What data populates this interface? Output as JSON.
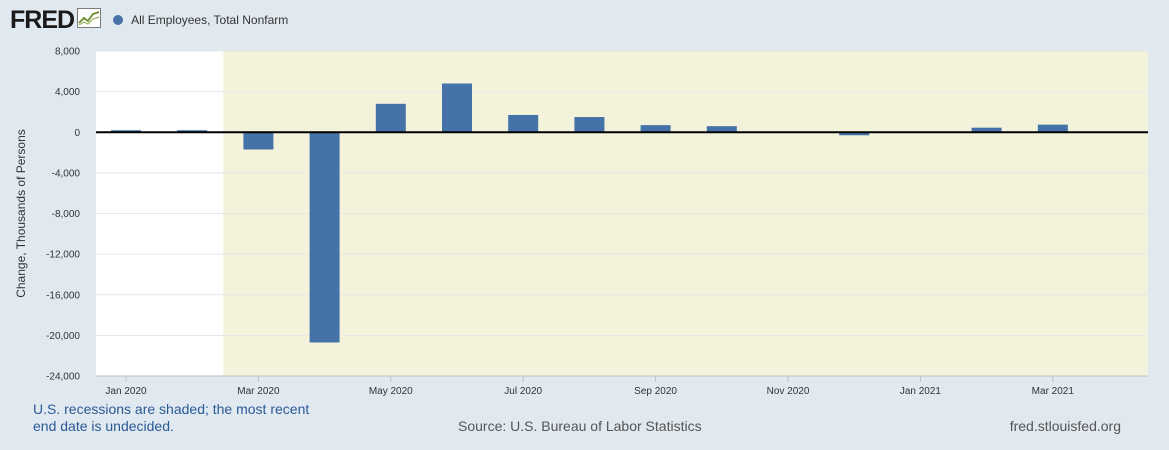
{
  "header": {
    "logo_text": "FRED",
    "logo_icon": "line-graph-icon"
  },
  "colors": {
    "background": "#e1e9f0",
    "bar": "#4572a7",
    "recession": "#f3f3dc",
    "plot_bg": "#ffffff"
  },
  "chart_data": {
    "type": "bar",
    "series": [
      {
        "name": "All Employees, Total Nonfarm",
        "x": [
          "2020-01",
          "2020-02",
          "2020-03",
          "2020-04",
          "2020-05",
          "2020-06",
          "2020-07",
          "2020-08",
          "2020-09",
          "2020-10",
          "2020-11",
          "2020-12",
          "2021-01",
          "2021-02",
          "2021-03",
          "2021-04"
        ],
        "values": [
          200,
          200,
          -1700,
          -20700,
          2800,
          4800,
          1700,
          1500,
          700,
          600,
          0,
          -300,
          0,
          450,
          750,
          0
        ]
      }
    ],
    "ylabel": "Change, Thousands of Persons",
    "ylim": [
      -24000,
      8000
    ],
    "yticks": [
      "8,000",
      "4,000",
      "0",
      "-4,000",
      "-8,000",
      "-12,000",
      "-16,000",
      "-20,000",
      "-24,000"
    ],
    "ytick_values": [
      8000,
      4000,
      0,
      -4000,
      -8000,
      -12000,
      -16000,
      -20000,
      -24000
    ],
    "xticks": [
      "Jan 2020",
      "Mar 2020",
      "May 2020",
      "Jul 2020",
      "Sep 2020",
      "Nov 2020",
      "Jan 2021",
      "Mar 2021"
    ],
    "xtick_months": [
      0,
      2,
      4,
      6,
      8,
      10,
      12,
      14
    ],
    "recession_start_month": 1.5,
    "grid": true,
    "legend_position": "top-left"
  },
  "footer": {
    "note": "U.S. recessions are shaded; the most recent end date is undecided.",
    "source": "Source: U.S. Bureau of Labor Statistics",
    "url": "fred.stlouisfed.org"
  }
}
